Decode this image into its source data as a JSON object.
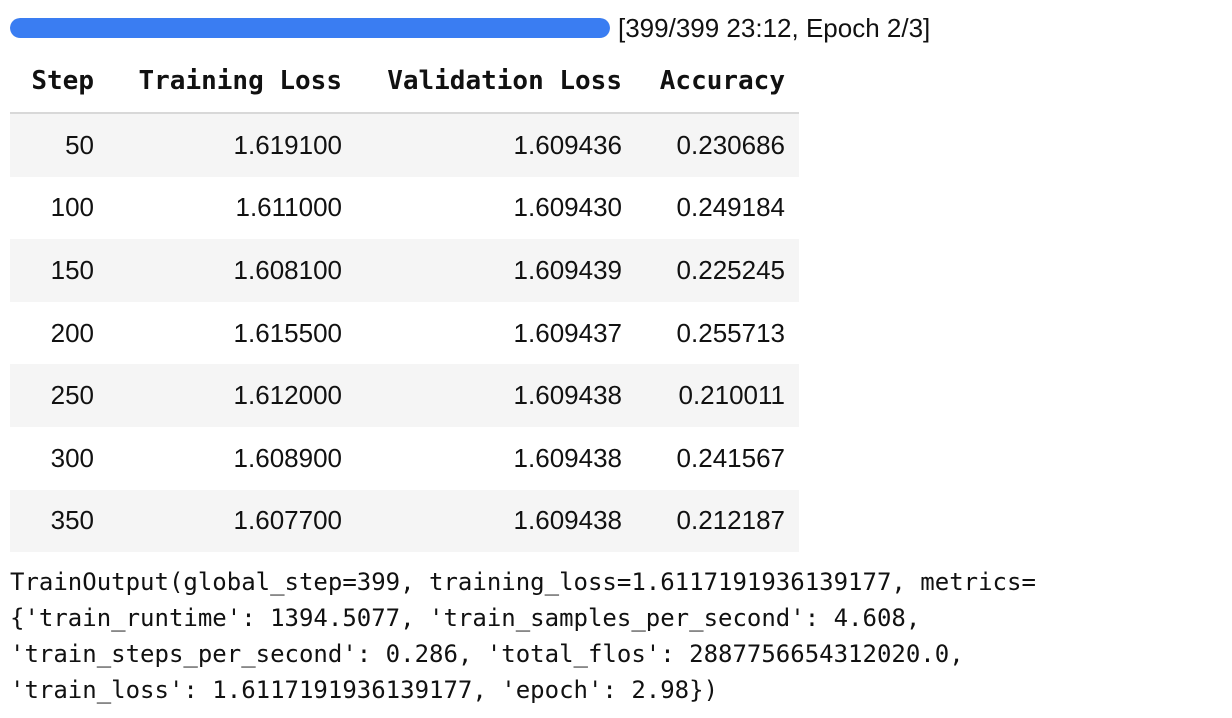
{
  "progress": {
    "fraction": 1.0,
    "status_text": "[399/399 23:12, Epoch 2/3]",
    "fill_color": "#3a7df2"
  },
  "table": {
    "headers": [
      "Step",
      "Training Loss",
      "Validation Loss",
      "Accuracy"
    ],
    "rows": [
      [
        "50",
        "1.619100",
        "1.609436",
        "0.230686"
      ],
      [
        "100",
        "1.611000",
        "1.609430",
        "0.249184"
      ],
      [
        "150",
        "1.608100",
        "1.609439",
        "0.225245"
      ],
      [
        "200",
        "1.615500",
        "1.609437",
        "0.255713"
      ],
      [
        "250",
        "1.612000",
        "1.609438",
        "0.210011"
      ],
      [
        "300",
        "1.608900",
        "1.609438",
        "0.241567"
      ],
      [
        "350",
        "1.607700",
        "1.609438",
        "0.212187"
      ]
    ]
  },
  "output": {
    "lines": [
      "TrainOutput(global_step=399, training_loss=1.6117191936139177, metrics=",
      "{'train_runtime': 1394.5077, 'train_samples_per_second': 4.608,",
      "'train_steps_per_second': 0.286, 'total_flos': 2887756654312020.0,",
      "'train_loss': 1.6117191936139177, 'epoch': 2.98})"
    ]
  }
}
